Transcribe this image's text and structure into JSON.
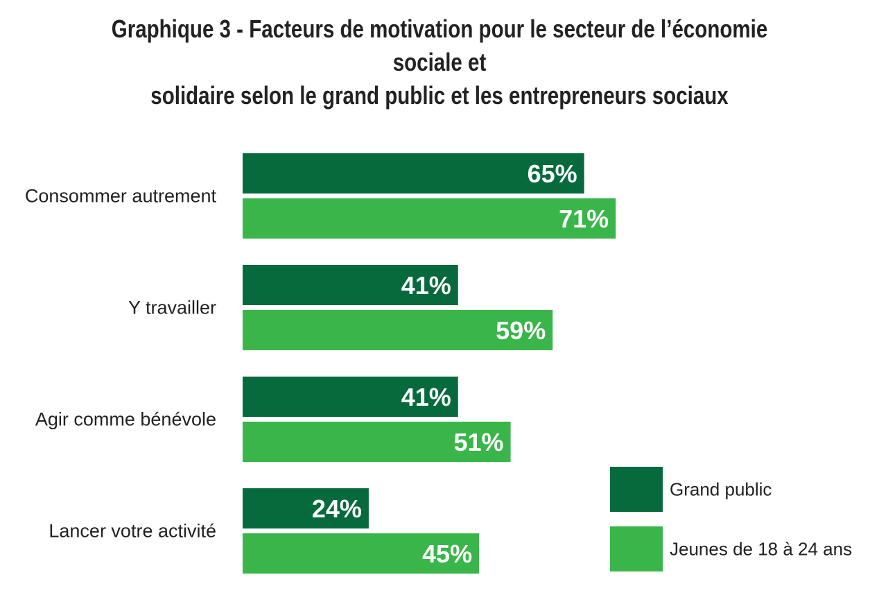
{
  "chart_data": {
    "type": "bar",
    "orientation": "horizontal",
    "title_lines": [
      "Graphique 3 - Facteurs de motivation pour le secteur de l’économie sociale et",
      "solidaire selon le grand public et les entrepreneurs sociaux"
    ],
    "categories": [
      "Consommer autrement",
      "Y travailler",
      "Agir comme bénévole",
      "Lancer votre activité"
    ],
    "series": [
      {
        "name": "Grand public",
        "color": "#066a3c",
        "values": [
          65,
          41,
          41,
          24
        ],
        "labels": [
          "65%",
          "41%",
          "41%",
          "24%"
        ]
      },
      {
        "name": "Jeunes de 18 à 24 ans",
        "color": "#3ab54a",
        "values": [
          71,
          59,
          51,
          45
        ],
        "labels": [
          "71%",
          "59%",
          "51%",
          "45%"
        ]
      }
    ],
    "value_unit": "%",
    "xlim": [
      0,
      100
    ],
    "grid": false,
    "legend_position": "bottom-right"
  }
}
